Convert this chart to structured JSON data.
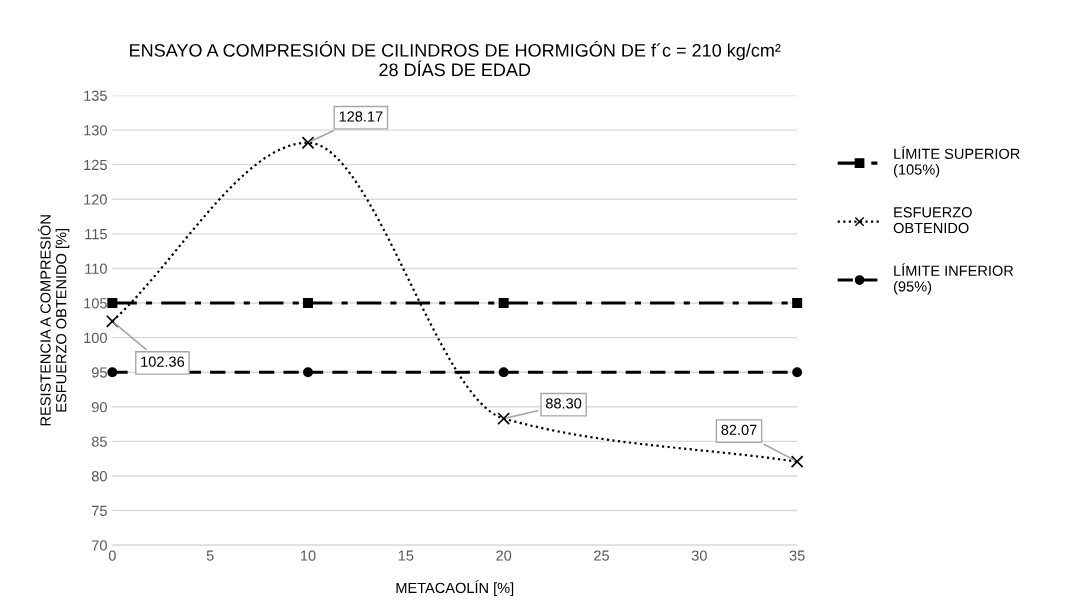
{
  "chart_data": {
    "type": "line",
    "title": "ENSAYO A COMPRESIÓN DE CILINDROS DE HORMIGÓN DE f´c = 210 kg/cm²\n28 DÍAS DE EDAD",
    "xlabel": "METACAOLÍN [%]",
    "ylabel": "RESISTENCIA A COMPRESIÓN\nESFUERZO OBTENIDO [%]",
    "x": [
      0,
      10,
      20,
      35
    ],
    "series": [
      {
        "name": "LÍMITE SUPERIOR\n(105%)",
        "color": "#000000",
        "values": [
          105,
          105,
          105,
          105
        ],
        "marker": "square",
        "line_style": "dashdot"
      },
      {
        "name": "ESFUERZO\nOBTENIDO",
        "color": "#000000",
        "values": [
          102.36,
          128.17,
          88.3,
          82.07
        ],
        "marker": "cross",
        "line_style": "dotted",
        "value_labels": [
          "102.36",
          "128.17",
          "88.30",
          "82.07"
        ]
      },
      {
        "name": "LÍMITE INFERIOR\n(95%)",
        "color": "#000000",
        "values": [
          95,
          95,
          95,
          95
        ],
        "marker": "circle",
        "line_style": "dashed"
      }
    ],
    "xlim": [
      0,
      35
    ],
    "xticks": [
      0,
      5,
      10,
      15,
      20,
      25,
      30,
      35
    ],
    "ylim": [
      70,
      135
    ],
    "yticks": [
      70,
      75,
      80,
      85,
      90,
      95,
      100,
      105,
      110,
      115,
      120,
      125,
      130,
      135
    ],
    "grid": "y",
    "legend": "right"
  }
}
